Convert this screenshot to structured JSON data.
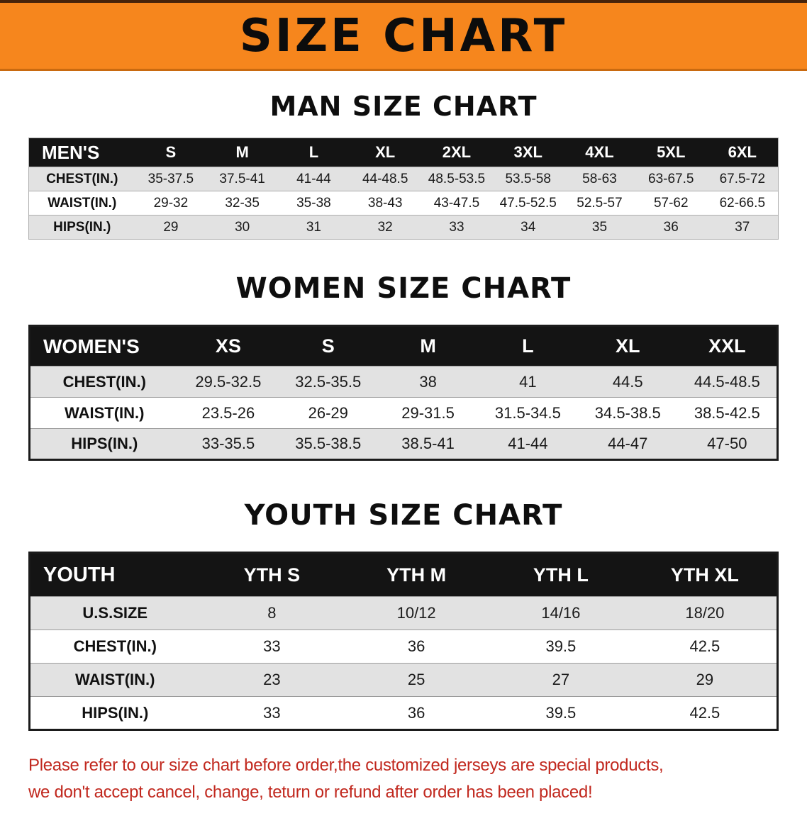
{
  "banner": {
    "title": "SIZE CHART"
  },
  "colors": {
    "banner_bg": "#f6861d",
    "table_header_bg": "#141414",
    "row_stripe": "#e2e2e2",
    "disclaimer_text": "#c1281e"
  },
  "men": {
    "heading": "MAN SIZE CHART",
    "corner": "MEN'S",
    "sizes": [
      "S",
      "M",
      "L",
      "XL",
      "2XL",
      "3XL",
      "4XL",
      "5XL",
      "6XL"
    ],
    "rows": [
      {
        "label": "CHEST(IN.)",
        "values": [
          "35-37.5",
          "37.5-41",
          "41-44",
          "44-48.5",
          "48.5-53.5",
          "53.5-58",
          "58-63",
          "63-67.5",
          "67.5-72"
        ]
      },
      {
        "label": "WAIST(IN.)",
        "values": [
          "29-32",
          "32-35",
          "35-38",
          "38-43",
          "43-47.5",
          "47.5-52.5",
          "52.5-57",
          "57-62",
          "62-66.5"
        ]
      },
      {
        "label": "HIPS(IN.)",
        "values": [
          "29",
          "30",
          "31",
          "32",
          "33",
          "34",
          "35",
          "36",
          "37"
        ]
      }
    ]
  },
  "women": {
    "heading": "WOMEN SIZE CHART",
    "corner": "WOMEN'S",
    "sizes": [
      "XS",
      "S",
      "M",
      "L",
      "XL",
      "XXL"
    ],
    "rows": [
      {
        "label": "CHEST(IN.)",
        "values": [
          "29.5-32.5",
          "32.5-35.5",
          "38",
          "41",
          "44.5",
          "44.5-48.5"
        ]
      },
      {
        "label": "WAIST(IN.)",
        "values": [
          "23.5-26",
          "26-29",
          "29-31.5",
          "31.5-34.5",
          "34.5-38.5",
          "38.5-42.5"
        ]
      },
      {
        "label": "HIPS(IN.)",
        "values": [
          "33-35.5",
          "35.5-38.5",
          "38.5-41",
          "41-44",
          "44-47",
          "47-50"
        ]
      }
    ]
  },
  "youth": {
    "heading": "YOUTH SIZE CHART",
    "corner": "YOUTH",
    "sizes": [
      "YTH S",
      "YTH M",
      "YTH L",
      "YTH XL"
    ],
    "rows": [
      {
        "label": "U.S.SIZE",
        "values": [
          "8",
          "10/12",
          "14/16",
          "18/20"
        ]
      },
      {
        "label": "CHEST(IN.)",
        "values": [
          "33",
          "36",
          "39.5",
          "42.5"
        ]
      },
      {
        "label": "WAIST(IN.)",
        "values": [
          "23",
          "25",
          "27",
          "29"
        ]
      },
      {
        "label": "HIPS(IN.)",
        "values": [
          "33",
          "36",
          "39.5",
          "42.5"
        ]
      }
    ]
  },
  "disclaimer": {
    "line1": "Please refer to our size chart before order,the customized jerseys are special products,",
    "line2": "we don't accept cancel, change, teturn or refund after order has been placed!"
  }
}
